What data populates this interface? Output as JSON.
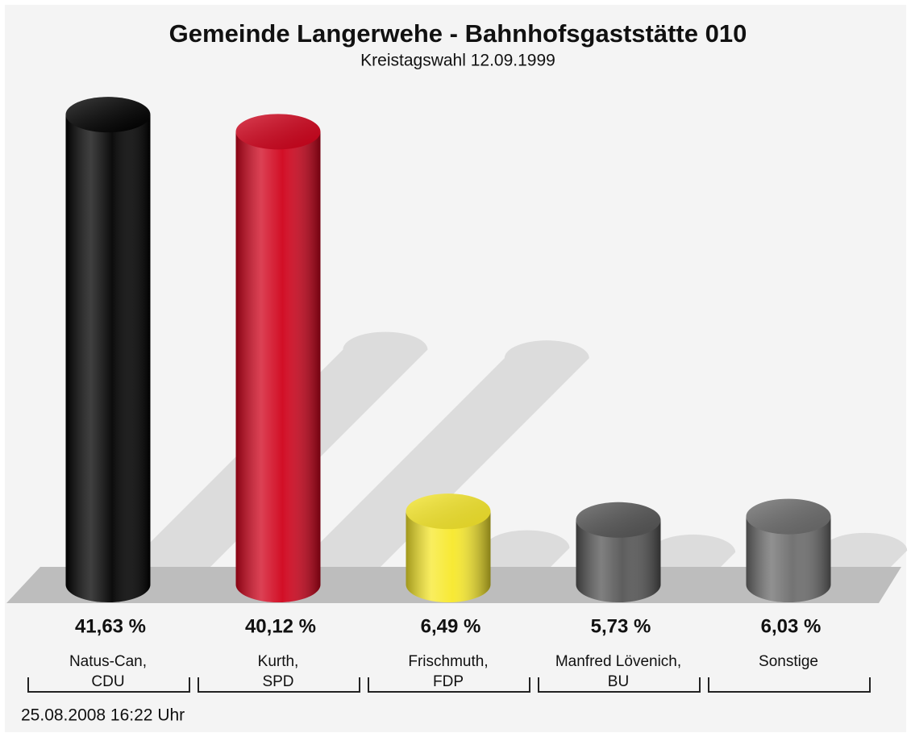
{
  "chart_data": {
    "type": "bar",
    "title": "Gemeinde Langerwehe - Bahnhofsgaststätte 010",
    "subtitle": "Kreistagswahl 12.09.1999",
    "categories": [
      "Natus-Can,\nCDU",
      "Kurth,\nSPD",
      "Frischmuth,\nFDP",
      "Manfred Lövenich,\nBU",
      "Sonstige"
    ],
    "values": [
      41.63,
      40.12,
      6.49,
      5.73,
      6.03
    ],
    "value_labels": [
      "41,63 %",
      "40,12 %",
      "6,49 %",
      "5,73 %",
      "6,03 %"
    ],
    "colors": [
      "#000000",
      "#d0021b",
      "#f7e82a",
      "#555555",
      "#6c6c6c"
    ],
    "footer": "25.08.2008 16:22 Uhr"
  }
}
